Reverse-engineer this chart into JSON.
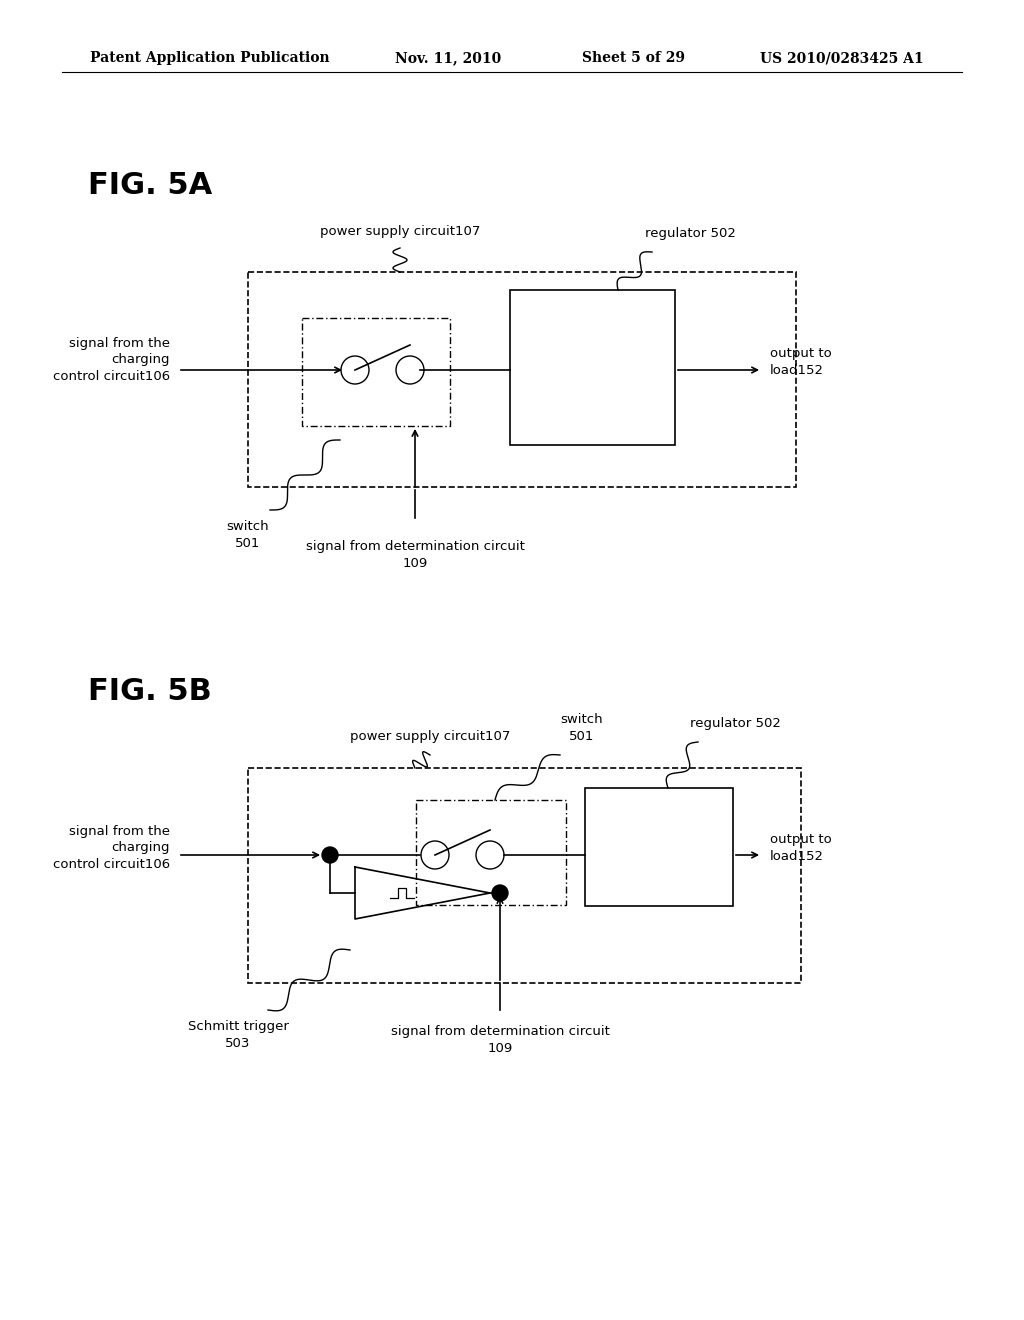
{
  "bg_color": "#ffffff",
  "header_text": "Patent Application Publication",
  "header_date": "Nov. 11, 2010",
  "header_sheet": "Sheet 5 of 29",
  "header_patent": "US 2010/0283425 A1"
}
